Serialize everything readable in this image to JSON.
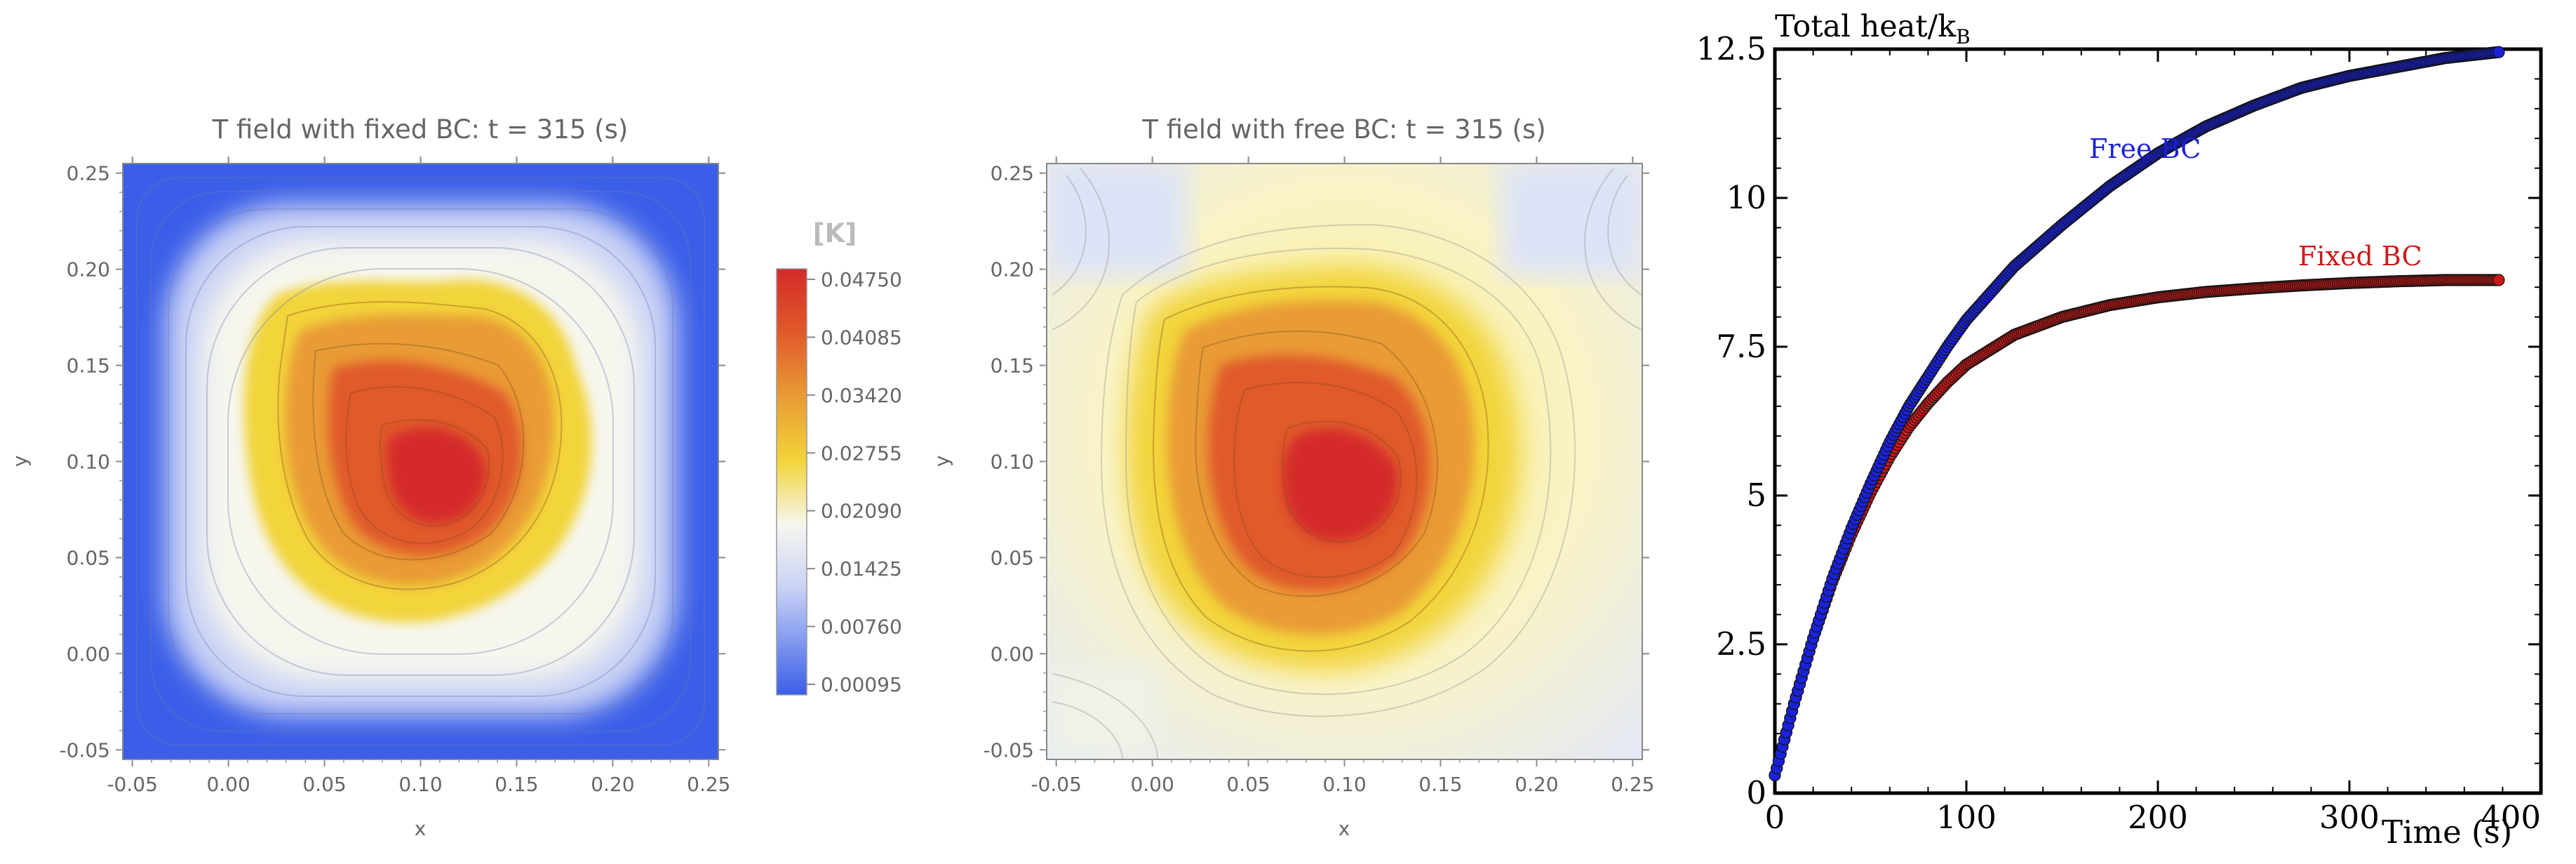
{
  "charts": {
    "left": {
      "title": "T field with fixed BC: t = 315 (s)",
      "xlabel": "x",
      "ylabel": "y",
      "xticks": [
        "-0.05",
        "0.00",
        "0.05",
        "0.10",
        "0.15",
        "0.20",
        "0.25"
      ],
      "yticks": [
        "-0.05",
        "0.00",
        "0.05",
        "0.10",
        "0.15",
        "0.20",
        "0.25"
      ]
    },
    "middle": {
      "title": "T field with free BC: t = 315 (s)",
      "xlabel": "x",
      "ylabel": "y",
      "xticks": [
        "-0.05",
        "0.00",
        "0.05",
        "0.10",
        "0.15",
        "0.20",
        "0.25"
      ],
      "yticks": [
        "-0.05",
        "0.00",
        "0.05",
        "0.10",
        "0.15",
        "0.20",
        "0.25"
      ]
    },
    "colorbar": {
      "label": "[K]",
      "ticks": [
        "0.04750",
        "0.04085",
        "0.03420",
        "0.02755",
        "0.02090",
        "0.01425",
        "0.00760",
        "0.00095"
      ]
    },
    "right": {
      "ylabel_main": "Total heat/k",
      "ylabel_sub": "B",
      "xlabel": "Time (s)",
      "xticks": [
        "0",
        "100",
        "200",
        "300",
        "400"
      ],
      "yticks": [
        "0",
        "2.5",
        "5",
        "7.5",
        "10",
        "12.5"
      ],
      "series_labels": {
        "free": "Free BC",
        "fixed": "Fixed BC"
      }
    }
  },
  "chart_data": [
    {
      "type": "heatmap",
      "title": "T field with fixed BC: t = 315 (s)",
      "xlabel": "x",
      "ylabel": "y",
      "xlim": [
        -0.05,
        0.25
      ],
      "ylim": [
        -0.05,
        0.25
      ],
      "colorbar_label": "[K]",
      "colorbar_range": [
        0.00095,
        0.0475
      ],
      "boundary_condition": "fixed (edges at minimum temperature)",
      "hotspot_center": [
        0.11,
        0.08
      ],
      "colors": {
        "low": "#3a5ee8",
        "mid": "#f6f6ee",
        "warm": "#f2d43a",
        "high": "#d42a2a"
      }
    },
    {
      "type": "heatmap",
      "title": "T field with free BC: t = 315 (s)",
      "xlabel": "x",
      "ylabel": "y",
      "xlim": [
        -0.05,
        0.25
      ],
      "ylim": [
        -0.05,
        0.25
      ],
      "colorbar_range": [
        0.00095,
        0.0475
      ],
      "boundary_condition": "free",
      "hotspot_center": [
        0.11,
        0.08
      ]
    },
    {
      "type": "line",
      "xlabel": "Time (s)",
      "ylabel": "Total heat/kB",
      "xlim": [
        0,
        400
      ],
      "ylim": [
        0,
        12.5
      ],
      "series": [
        {
          "name": "Free BC",
          "color": "#1a22d8",
          "x": [
            0,
            10,
            20,
            30,
            40,
            50,
            60,
            70,
            80,
            90,
            100,
            125,
            150,
            175,
            200,
            225,
            250,
            275,
            300,
            325,
            350,
            378
          ],
          "y": [
            0.3,
            1.5,
            2.6,
            3.6,
            4.45,
            5.2,
            5.9,
            6.5,
            7.0,
            7.5,
            7.95,
            8.85,
            9.55,
            10.2,
            10.75,
            11.2,
            11.55,
            11.85,
            12.05,
            12.2,
            12.35,
            12.45
          ]
        },
        {
          "name": "Fixed BC",
          "color": "#cc1a1a",
          "x": [
            0,
            10,
            20,
            30,
            40,
            50,
            60,
            70,
            80,
            90,
            100,
            125,
            150,
            175,
            200,
            225,
            250,
            275,
            300,
            325,
            350,
            378
          ],
          "y": [
            0.3,
            1.5,
            2.6,
            3.55,
            4.35,
            5.05,
            5.65,
            6.15,
            6.55,
            6.9,
            7.2,
            7.7,
            8.0,
            8.2,
            8.33,
            8.42,
            8.48,
            8.53,
            8.57,
            8.6,
            8.62,
            8.62
          ]
        }
      ]
    }
  ]
}
